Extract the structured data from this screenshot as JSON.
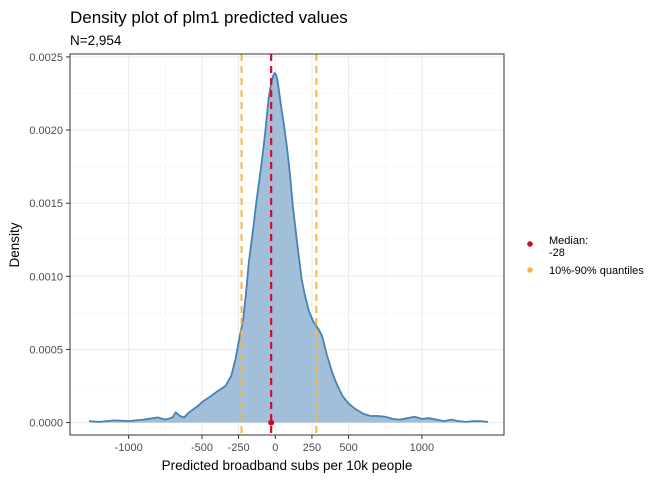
{
  "chart_data": {
    "type": "area",
    "title": "Density plot of plm1 predicted values",
    "subtitle": "N=2,954",
    "xlabel": "Predicted broadband subs per 10k people",
    "ylabel": "Density",
    "xlim": [
      -1400,
      1560
    ],
    "ylim": [
      -8.5e-05,
      0.00252
    ],
    "x_ticks": [
      -1000,
      -500,
      -250,
      0,
      250,
      500,
      1000
    ],
    "x_tick_labels": [
      "-1000",
      "-500",
      "-250",
      "0",
      "250",
      "500",
      "1000"
    ],
    "x_minor": [
      -750,
      750
    ],
    "y_ticks": [
      0,
      0.0005,
      0.001,
      0.0015,
      0.002,
      0.0025
    ],
    "y_tick_labels": [
      "0.0000",
      "0.0005",
      "0.0010",
      "0.0015",
      "0.0020",
      "0.0025"
    ],
    "grid": true,
    "legend_position": "right",
    "colors": {
      "density_fill": "#a2bfd9",
      "density_line": "#4682b4",
      "median": "#c8102e",
      "quantiles": "#f5b54b"
    },
    "density": {
      "x": [
        -1270,
        -1200,
        -1100,
        -1000,
        -900,
        -800,
        -750,
        -700,
        -680,
        -650,
        -620,
        -600,
        -560,
        -520,
        -500,
        -470,
        -440,
        -400,
        -370,
        -340,
        -300,
        -270,
        -250,
        -220,
        -200,
        -180,
        -150,
        -130,
        -110,
        -90,
        -70,
        -55,
        -45,
        -35,
        -25,
        -15,
        -5,
        5,
        15,
        25,
        40,
        60,
        80,
        100,
        120,
        150,
        180,
        200,
        230,
        260,
        280,
        300,
        320,
        350,
        380,
        400,
        430,
        460,
        500,
        550,
        600,
        650,
        700,
        750,
        800,
        850,
        900,
        950,
        1000,
        1050,
        1100,
        1150,
        1200,
        1250,
        1300,
        1350,
        1400,
        1450
      ],
      "y": [
        1e-05,
        5e-06,
        1.5e-05,
        1e-05,
        2e-05,
        3.5e-05,
        2e-05,
        3.5e-05,
        7e-05,
        4.5e-05,
        3.5e-05,
        6e-05,
        9e-05,
        0.00012,
        0.00014,
        0.00016,
        0.00018,
        0.00021,
        0.00023,
        0.00025,
        0.00032,
        0.00044,
        0.00055,
        0.0007,
        0.00088,
        0.0011,
        0.00133,
        0.0015,
        0.00165,
        0.0018,
        0.00197,
        0.00212,
        0.00222,
        0.00228,
        0.00233,
        0.00237,
        0.00239,
        0.00238,
        0.00234,
        0.00227,
        0.00216,
        0.00203,
        0.00188,
        0.0017,
        0.00148,
        0.00122,
        0.00098,
        0.00088,
        0.00076,
        0.00069,
        0.00066,
        0.00063,
        0.00059,
        0.00047,
        0.00037,
        0.00031,
        0.00024,
        0.00018,
        0.00013,
        9e-05,
        6e-05,
        4.5e-05,
        4.5e-05,
        4e-05,
        2.5e-05,
        2e-05,
        3e-05,
        4e-05,
        2.5e-05,
        3e-05,
        2e-05,
        1e-05,
        2e-05,
        1e-05,
        5e-06,
        1e-05,
        1e-05,
        5e-06
      ]
    },
    "median": {
      "value": -28
    },
    "quantiles": {
      "p10": -230,
      "p90": 280
    },
    "legend": [
      {
        "label_line1": "Median:",
        "label_line2": "-28",
        "color_key": "median"
      },
      {
        "label_line1": "10%-90% quantiles",
        "label_line2": "",
        "color_key": "quantiles"
      }
    ]
  }
}
